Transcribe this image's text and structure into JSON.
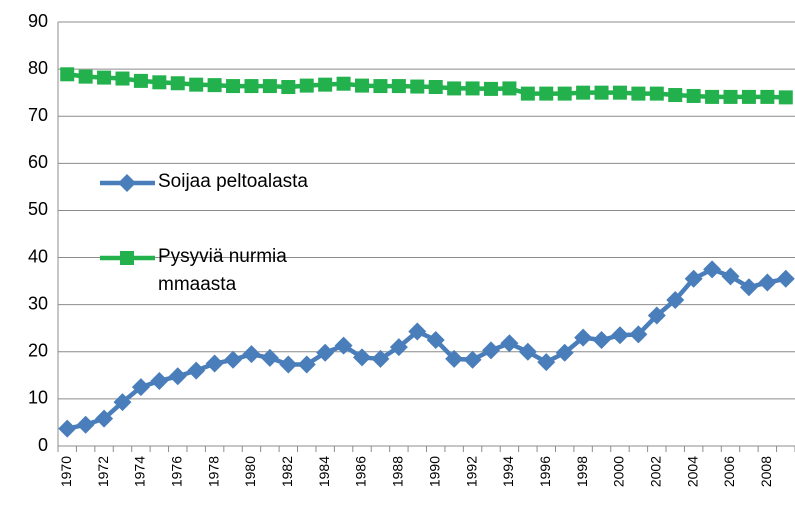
{
  "chart_data": {
    "type": "line",
    "categories": [
      "1970",
      null,
      "1972",
      null,
      "1974",
      null,
      "1976",
      null,
      "1978",
      null,
      "1980",
      null,
      "1982",
      null,
      "1984",
      null,
      "1986",
      null,
      "1988",
      null,
      "1990",
      null,
      "1992",
      null,
      "1994",
      null,
      "1996",
      null,
      "1998",
      null,
      "2000",
      null,
      "2002",
      null,
      "2004",
      null,
      "2006",
      null,
      "2008",
      null
    ],
    "series": [
      {
        "name": "Soijaa peltoalasta",
        "color": "#4a7ebb",
        "marker": "diamond",
        "values": [
          3.7,
          4.5,
          5.8,
          9.3,
          12.5,
          13.8,
          14.8,
          16,
          17.5,
          18.3,
          19.5,
          18.7,
          17.3,
          17.3,
          19.8,
          21.3,
          18.8,
          18.5,
          21,
          24.3,
          22.5,
          18.5,
          18.3,
          20.3,
          21.8,
          20,
          17.8,
          19.8,
          23,
          22.5,
          23.5,
          23.7,
          27.7,
          31,
          35.5,
          37.5,
          36,
          33.7,
          34.7,
          35.5
        ]
      },
      {
        "name": "Pysyviä nurmia mmaasta",
        "color": "#22b14c",
        "marker": "square",
        "values": [
          78.9,
          78.4,
          78.2,
          78.0,
          77.5,
          77.2,
          77.0,
          76.7,
          76.6,
          76.4,
          76.4,
          76.4,
          76.2,
          76.5,
          76.7,
          76.9,
          76.5,
          76.4,
          76.4,
          76.3,
          76.2,
          75.9,
          75.9,
          75.8,
          75.9,
          74.8,
          74.8,
          74.8,
          75.0,
          75.0,
          75.0,
          74.8,
          74.8,
          74.5,
          74.3,
          74.1,
          74.1,
          74.1,
          74.1,
          74.0
        ]
      }
    ],
    "ylim": [
      0,
      90
    ],
    "yticks": [
      0,
      10,
      20,
      30,
      40,
      50,
      60,
      70,
      80,
      90
    ],
    "grid": true
  }
}
